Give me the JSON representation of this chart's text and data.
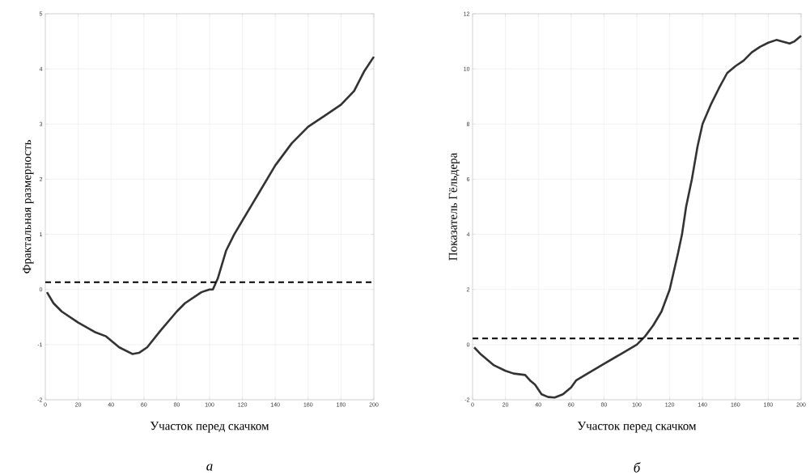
{
  "chart_data": [
    {
      "type": "line",
      "xlabel": "Участок перед скачком",
      "ylabel": "Фрактальная размерность",
      "annotations": [
        "а"
      ],
      "x": [
        1,
        5,
        10,
        20,
        30,
        37,
        45,
        53,
        57,
        62,
        70,
        80,
        85,
        95,
        100,
        102,
        105,
        110,
        115,
        120,
        130,
        140,
        150,
        160,
        170,
        180,
        188,
        194,
        200
      ],
      "series": [
        {
          "color": "#333333",
          "values": [
            -0.05,
            -0.25,
            -0.4,
            -0.6,
            -0.77,
            -0.85,
            -1.05,
            -1.17,
            -1.15,
            -1.05,
            -0.75,
            -0.4,
            -0.25,
            -0.05,
            0,
            0,
            0.2,
            0.7,
            1.0,
            1.25,
            1.75,
            2.25,
            2.65,
            2.95,
            3.15,
            3.35,
            3.6,
            3.95,
            4.22
          ]
        }
      ],
      "xlim": [
        0,
        200
      ],
      "ylim": [
        -2,
        5
      ],
      "xticks": [
        0,
        20,
        40,
        60,
        80,
        100,
        120,
        140,
        160,
        180,
        200
      ],
      "yticks": [
        -2,
        -1,
        0,
        1,
        2,
        3,
        4,
        5
      ],
      "grid": true,
      "ref_lines": [
        {
          "axis": "y",
          "value": 0.13,
          "color": "#000000",
          "line_style": "dashed"
        }
      ]
    },
    {
      "type": "line",
      "xlabel": "Участок перед скачком",
      "ylabel": "Показатель Гёльдера",
      "annotations": [
        "б"
      ],
      "x": [
        1,
        5,
        13,
        20,
        25,
        32,
        35,
        38,
        42,
        46,
        50,
        55,
        60,
        63,
        70,
        80,
        90,
        100,
        105,
        110,
        115,
        120,
        125,
        127.5,
        130,
        133.5,
        137,
        140,
        145,
        150,
        155,
        160,
        165,
        170,
        175,
        180,
        185,
        188,
        193,
        196,
        200
      ],
      "series": [
        {
          "color": "#333333",
          "values": [
            -0.1,
            -0.35,
            -0.75,
            -0.95,
            -1.05,
            -1.1,
            -1.3,
            -1.45,
            -1.8,
            -1.9,
            -1.92,
            -1.8,
            -1.55,
            -1.3,
            -1.05,
            -0.7,
            -0.35,
            0.0,
            0.3,
            0.7,
            1.2,
            2.0,
            3.3,
            4.0,
            5.0,
            6.0,
            7.2,
            8.0,
            8.7,
            9.3,
            9.85,
            10.1,
            10.3,
            10.6,
            10.8,
            10.95,
            11.05,
            11.0,
            10.92,
            11.0,
            11.2
          ]
        }
      ],
      "xlim": [
        0,
        200
      ],
      "ylim": [
        -2,
        12
      ],
      "xticks": [
        0,
        20,
        40,
        60,
        80,
        100,
        120,
        140,
        160,
        180,
        200
      ],
      "yticks": [
        -2,
        0,
        2,
        4,
        6,
        8,
        10,
        12
      ],
      "grid": true,
      "ref_lines": [
        {
          "axis": "y",
          "value": 0.22,
          "color": "#000000",
          "line_style": "dashed"
        }
      ]
    }
  ]
}
